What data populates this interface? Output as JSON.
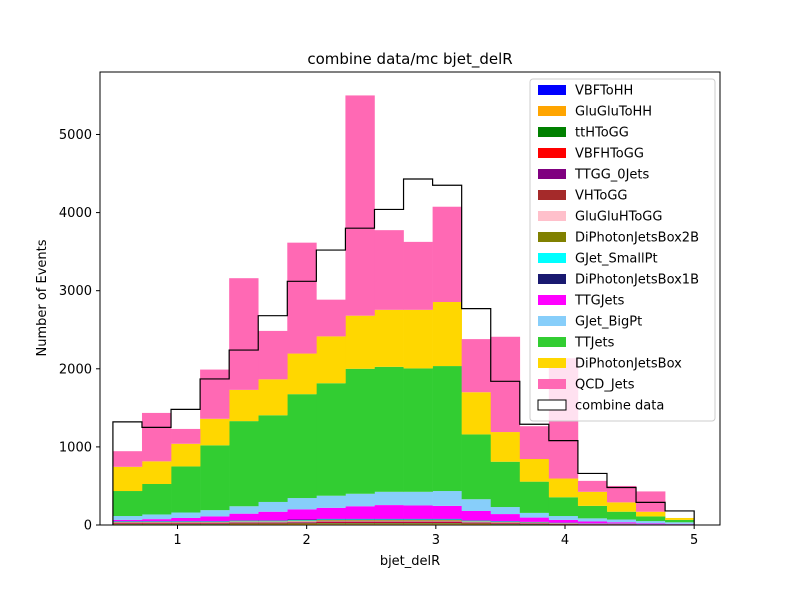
{
  "chart_data": {
    "type": "bar",
    "stacked": true,
    "histogram": true,
    "title": "combine data/mc bjet_delR",
    "xlabel": "bjet_delR",
    "ylabel": "Number of Events",
    "xlim": [
      0.4,
      5.2
    ],
    "ylim": [
      0,
      5800
    ],
    "xticks": [
      1,
      2,
      3,
      4,
      5
    ],
    "yticks": [
      0,
      1000,
      2000,
      3000,
      4000,
      5000
    ],
    "bin_edges": [
      0.5,
      0.725,
      0.95,
      1.175,
      1.4,
      1.625,
      1.85,
      2.075,
      2.3,
      2.525,
      2.75,
      2.975,
      3.2,
      3.425,
      3.65,
      3.875,
      4.1,
      4.325,
      4.55,
      4.775,
      5.0
    ],
    "legend_position": "upper right",
    "grid": false,
    "series": [
      {
        "name": "VBFToHH",
        "color": "#0000ff",
        "values": [
          5,
          5,
          5,
          5,
          6,
          6,
          7,
          8,
          8,
          8,
          8,
          8,
          6,
          5,
          4,
          3,
          2,
          2,
          1,
          1
        ]
      },
      {
        "name": "GluGluToHH",
        "color": "#ffa500",
        "values": [
          5,
          5,
          5,
          5,
          6,
          6,
          7,
          8,
          8,
          8,
          8,
          8,
          6,
          5,
          4,
          3,
          2,
          2,
          1,
          1
        ]
      },
      {
        "name": "ttHToGG",
        "color": "#008000",
        "values": [
          5,
          5,
          5,
          5,
          6,
          6,
          7,
          8,
          8,
          8,
          8,
          8,
          6,
          5,
          4,
          3,
          2,
          2,
          1,
          1
        ]
      },
      {
        "name": "VBFHToGG",
        "color": "#ff0000",
        "values": [
          5,
          5,
          5,
          5,
          6,
          6,
          7,
          8,
          8,
          8,
          8,
          8,
          6,
          5,
          4,
          3,
          2,
          2,
          1,
          1
        ]
      },
      {
        "name": "TTGG_0Jets",
        "color": "#800080",
        "values": [
          5,
          5,
          5,
          5,
          6,
          6,
          7,
          8,
          8,
          8,
          8,
          8,
          6,
          5,
          4,
          3,
          2,
          2,
          1,
          1
        ]
      },
      {
        "name": "VHToGG",
        "color": "#a52a2a",
        "values": [
          5,
          5,
          5,
          5,
          6,
          6,
          7,
          8,
          8,
          8,
          8,
          8,
          6,
          5,
          4,
          3,
          2,
          2,
          1,
          1
        ]
      },
      {
        "name": "GluGluHToGG",
        "color": "#ffc0cb",
        "values": [
          5,
          5,
          5,
          5,
          6,
          6,
          7,
          8,
          8,
          8,
          8,
          8,
          6,
          5,
          4,
          3,
          2,
          2,
          1,
          1
        ]
      },
      {
        "name": "DiPhotonJetsBox2B",
        "color": "#808000",
        "values": [
          5,
          5,
          5,
          5,
          6,
          6,
          7,
          8,
          8,
          8,
          8,
          8,
          6,
          5,
          4,
          3,
          2,
          2,
          1,
          1
        ]
      },
      {
        "name": "GJet_SmallPt",
        "color": "#00ffff",
        "values": [
          5,
          5,
          5,
          5,
          6,
          6,
          7,
          8,
          8,
          8,
          8,
          8,
          6,
          5,
          4,
          3,
          2,
          2,
          1,
          1
        ]
      },
      {
        "name": "DiPhotonJetsBox1B",
        "color": "#191970",
        "values": [
          5,
          5,
          5,
          5,
          6,
          6,
          7,
          8,
          8,
          8,
          8,
          8,
          6,
          5,
          4,
          3,
          2,
          2,
          1,
          1
        ]
      },
      {
        "name": "TTGJets",
        "color": "#ff00ff",
        "values": [
          15,
          25,
          40,
          60,
          85,
          110,
          130,
          140,
          160,
          175,
          170,
          165,
          120,
          90,
          55,
          35,
          25,
          15,
          10,
          5
        ]
      },
      {
        "name": "GJet_BigPt",
        "color": "#87cefa",
        "values": [
          50,
          60,
          70,
          80,
          95,
          125,
          145,
          155,
          160,
          170,
          175,
          190,
          150,
          90,
          60,
          50,
          40,
          35,
          30,
          20
        ]
      },
      {
        "name": "TTJets",
        "color": "#32cd32",
        "values": [
          320,
          390,
          590,
          830,
          1090,
          1110,
          1330,
          1440,
          1600,
          1600,
          1580,
          1600,
          830,
          580,
          400,
          240,
          160,
          100,
          60,
          30
        ]
      },
      {
        "name": "DiPhotonJetsBox",
        "color": "#ffd700",
        "values": [
          310,
          290,
          290,
          340,
          400,
          460,
          520,
          600,
          680,
          730,
          750,
          820,
          540,
          380,
          290,
          240,
          180,
          120,
          60,
          25
        ]
      },
      {
        "name": "QCD_Jets",
        "color": "#ff69b4",
        "values": [
          200,
          620,
          190,
          630,
          1430,
          620,
          1420,
          470,
          2820,
          1020,
          870,
          1220,
          680,
          1220,
          420,
          1540,
          140,
          210,
          260,
          0
        ]
      }
    ],
    "data_series": {
      "name": "combine data",
      "values": [
        1320,
        1250,
        1480,
        1870,
        2240,
        2680,
        3120,
        3520,
        3800,
        4040,
        4430,
        4350,
        2770,
        1840,
        1290,
        1080,
        660,
        480,
        290,
        180
      ]
    }
  }
}
